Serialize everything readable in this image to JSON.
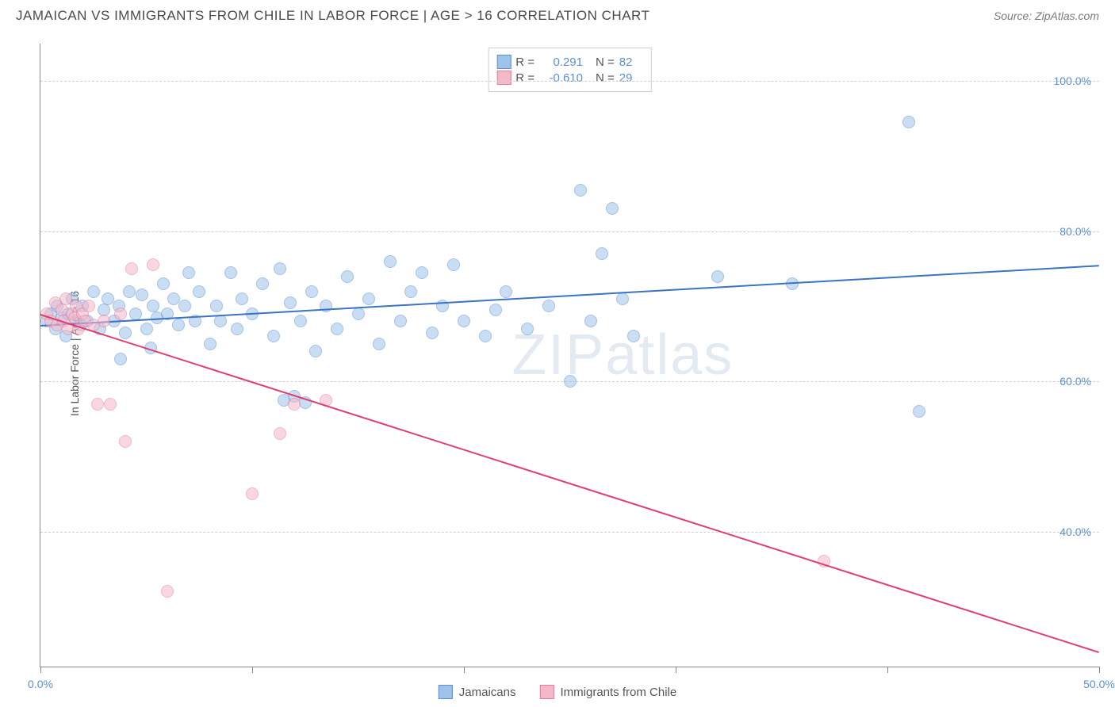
{
  "header": {
    "title": "JAMAICAN VS IMMIGRANTS FROM CHILE IN LABOR FORCE | AGE > 16 CORRELATION CHART",
    "source": "Source: ZipAtlas.com"
  },
  "chart": {
    "type": "scatter",
    "ylabel": "In Labor Force | Age > 16",
    "xlim": [
      0,
      50
    ],
    "ylim": [
      22,
      105
    ],
    "xticks": [
      0,
      10,
      20,
      30,
      40,
      50
    ],
    "xtick_labels": {
      "0": "0.0%",
      "50": "50.0%"
    },
    "yticks": [
      40,
      60,
      80,
      100
    ],
    "ytick_labels": [
      "40.0%",
      "60.0%",
      "80.0%",
      "100.0%"
    ],
    "grid_color": "#d0d0d0",
    "axis_color": "#888888",
    "background": "#ffffff",
    "label_color": "#5b8fd6",
    "point_radius": 8,
    "point_opacity": 0.55,
    "series": [
      {
        "name": "Jamaicans",
        "color_fill": "#9ec3eb",
        "color_stroke": "#5b8fd6",
        "trend_color": "#3b74c4",
        "r": "0.291",
        "n": "82",
        "trend": {
          "x1": 0,
          "y1": 67.5,
          "x2": 50,
          "y2": 75.5
        },
        "points": [
          [
            0.3,
            68
          ],
          [
            0.5,
            69
          ],
          [
            0.7,
            67
          ],
          [
            0.8,
            70
          ],
          [
            1.0,
            68.5
          ],
          [
            1.2,
            66
          ],
          [
            1.3,
            69
          ],
          [
            1.5,
            71
          ],
          [
            1.7,
            68
          ],
          [
            1.9,
            67.5
          ],
          [
            2.0,
            70
          ],
          [
            2.2,
            68
          ],
          [
            2.5,
            72
          ],
          [
            2.8,
            67
          ],
          [
            3.0,
            69.5
          ],
          [
            3.2,
            71
          ],
          [
            3.5,
            68
          ],
          [
            3.7,
            70
          ],
          [
            4.0,
            66.5
          ],
          [
            4.2,
            72
          ],
          [
            4.5,
            69
          ],
          [
            4.8,
            71.5
          ],
          [
            5.0,
            67
          ],
          [
            5.3,
            70
          ],
          [
            5.5,
            68.5
          ],
          [
            5.8,
            73
          ],
          [
            6.0,
            69
          ],
          [
            6.3,
            71
          ],
          [
            6.5,
            67.5
          ],
          [
            6.8,
            70
          ],
          [
            7.0,
            74.5
          ],
          [
            7.3,
            68
          ],
          [
            7.5,
            72
          ],
          [
            8.0,
            65
          ],
          [
            8.3,
            70
          ],
          [
            8.5,
            68
          ],
          [
            9.0,
            74.5
          ],
          [
            9.3,
            67
          ],
          [
            9.5,
            71
          ],
          [
            10.0,
            69
          ],
          [
            10.5,
            73
          ],
          [
            11.0,
            66
          ],
          [
            11.3,
            75
          ],
          [
            11.8,
            70.5
          ],
          [
            12.0,
            58
          ],
          [
            12.3,
            68
          ],
          [
            12.8,
            72
          ],
          [
            13.0,
            64
          ],
          [
            13.5,
            70
          ],
          [
            14.0,
            67
          ],
          [
            14.5,
            74
          ],
          [
            15.0,
            69
          ],
          [
            15.5,
            71
          ],
          [
            16.0,
            65
          ],
          [
            16.5,
            76
          ],
          [
            17.0,
            68
          ],
          [
            17.5,
            72
          ],
          [
            18.0,
            74.5
          ],
          [
            18.5,
            66.5
          ],
          [
            19.0,
            70
          ],
          [
            19.5,
            75.5
          ],
          [
            20.0,
            68
          ],
          [
            21.0,
            66
          ],
          [
            21.5,
            69.5
          ],
          [
            22.0,
            72
          ],
          [
            23.0,
            67
          ],
          [
            24.0,
            70
          ],
          [
            25.0,
            60
          ],
          [
            25.5,
            85.5
          ],
          [
            26.0,
            68
          ],
          [
            26.5,
            77
          ],
          [
            27.0,
            83
          ],
          [
            27.5,
            71
          ],
          [
            28.0,
            66
          ],
          [
            32.0,
            74
          ],
          [
            35.5,
            73
          ],
          [
            41.0,
            94.5
          ],
          [
            41.5,
            56
          ],
          [
            3.8,
            63
          ],
          [
            5.2,
            64.5
          ],
          [
            11.5,
            57.5
          ],
          [
            12.5,
            57.2
          ]
        ]
      },
      {
        "name": "Immigrants from Chile",
        "color_fill": "#f5b8c9",
        "color_stroke": "#e57ba0",
        "trend_color": "#e23d6d",
        "r": "-0.610",
        "n": "29",
        "trend": {
          "x1": 0,
          "y1": 69,
          "x2": 50,
          "y2": 24
        },
        "points": [
          [
            0.3,
            69
          ],
          [
            0.5,
            68
          ],
          [
            0.7,
            70.5
          ],
          [
            0.8,
            67.5
          ],
          [
            1.0,
            69.5
          ],
          [
            1.1,
            68
          ],
          [
            1.2,
            71
          ],
          [
            1.3,
            67
          ],
          [
            1.5,
            69
          ],
          [
            1.6,
            68.5
          ],
          [
            1.7,
            70
          ],
          [
            1.8,
            67
          ],
          [
            2.0,
            69
          ],
          [
            2.1,
            68
          ],
          [
            2.3,
            70
          ],
          [
            2.5,
            67.5
          ],
          [
            2.7,
            57
          ],
          [
            3.0,
            68
          ],
          [
            3.3,
            57
          ],
          [
            3.8,
            69
          ],
          [
            4.0,
            52
          ],
          [
            4.3,
            75
          ],
          [
            5.3,
            75.5
          ],
          [
            6.0,
            32
          ],
          [
            10.0,
            45
          ],
          [
            11.3,
            53
          ],
          [
            12.0,
            57
          ],
          [
            13.5,
            57.5
          ],
          [
            37.0,
            36
          ]
        ]
      }
    ],
    "watermark": "ZIPatlas",
    "bottom_legend": [
      {
        "label": "Jamaicans",
        "fill": "#9ec3eb",
        "stroke": "#5b8fd6"
      },
      {
        "label": "Immigrants from Chile",
        "fill": "#f5b8c9",
        "stroke": "#e57ba0"
      }
    ]
  }
}
